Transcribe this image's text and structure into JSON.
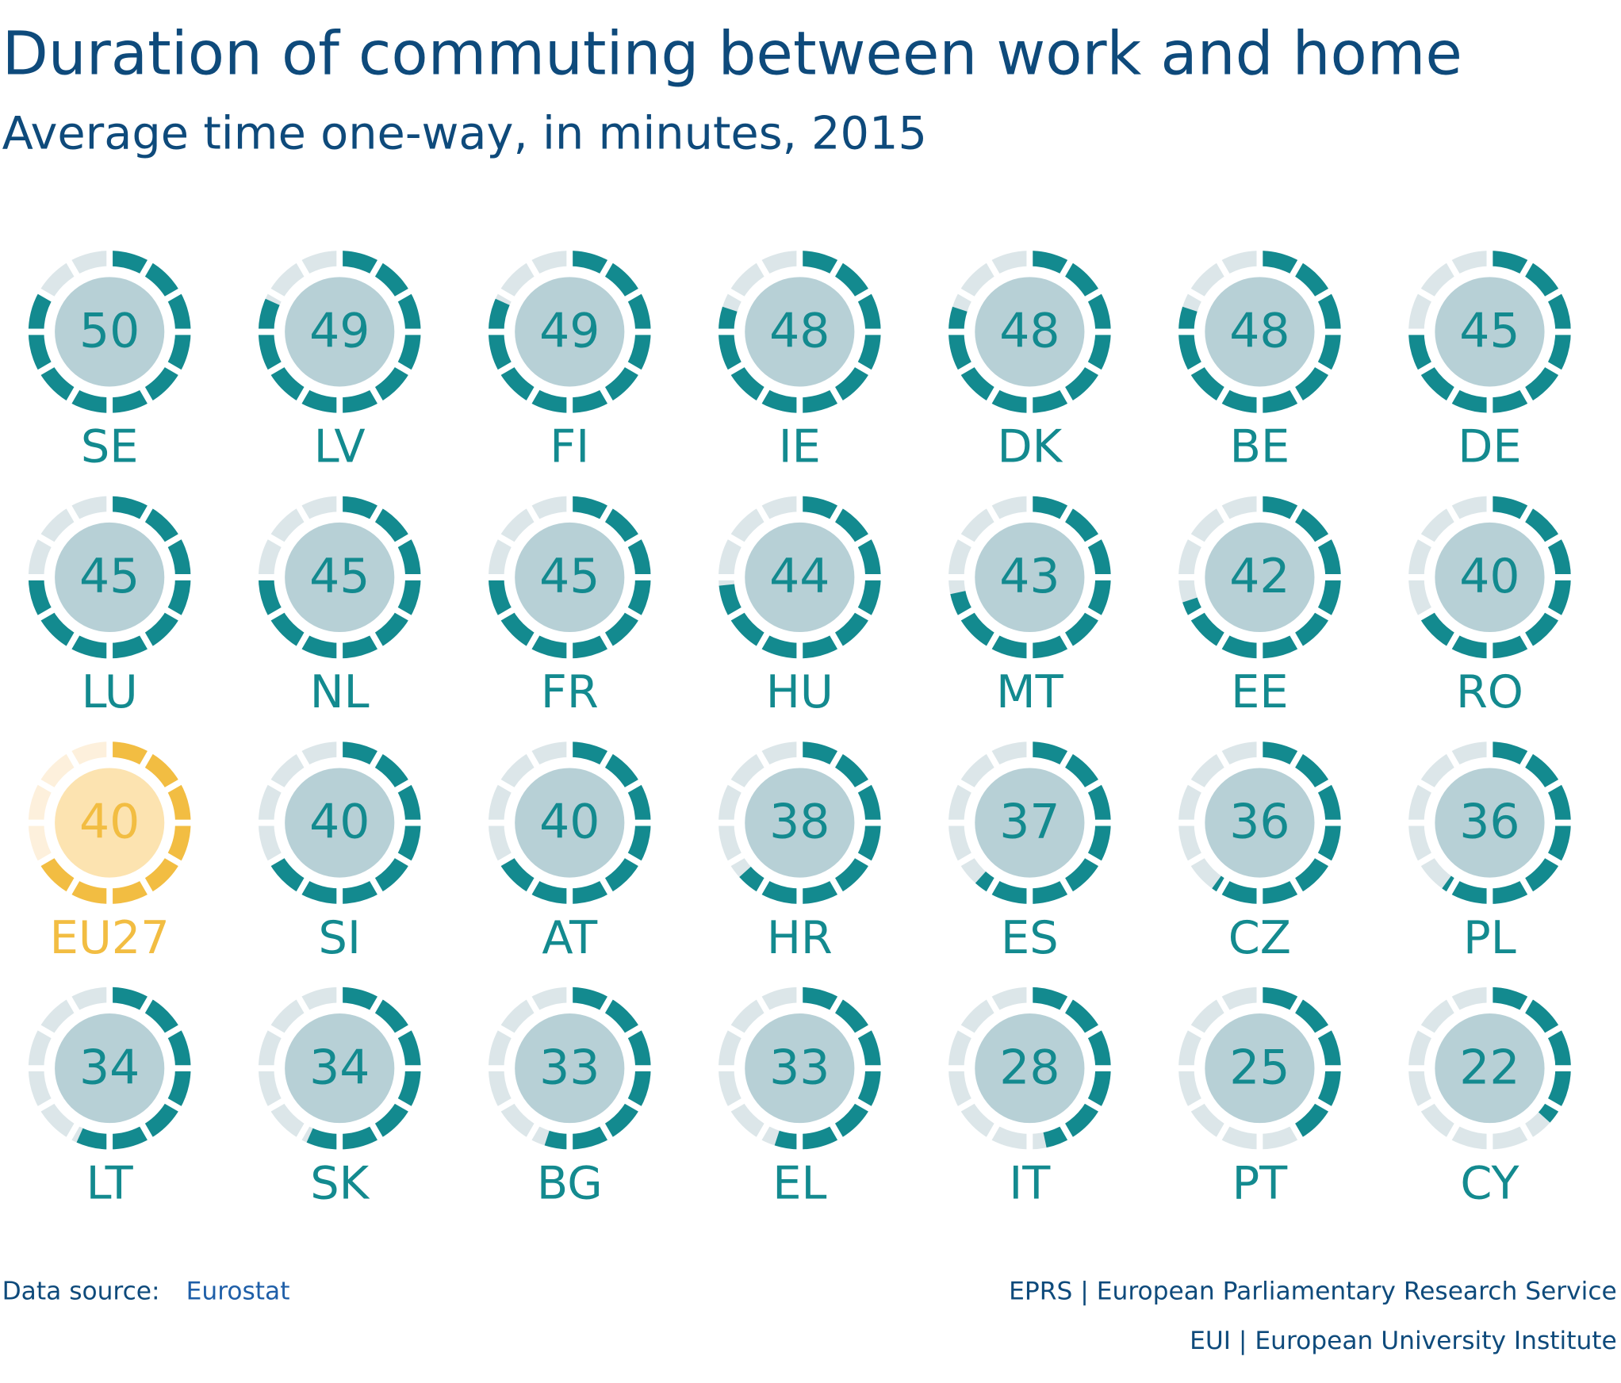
{
  "chart_data": {
    "type": "gauge",
    "title": "Duration of commuting between work and home",
    "subtitle": "Average time one-way, in minutes, 2015",
    "categories": [
      "SE",
      "LV",
      "FI",
      "IE",
      "DK",
      "BE",
      "DE",
      "LU",
      "NL",
      "FR",
      "HU",
      "MT",
      "EE",
      "RO",
      "EU27",
      "SI",
      "AT",
      "HR",
      "ES",
      "CZ",
      "PL",
      "LT",
      "SK",
      "BG",
      "EL",
      "IT",
      "PT",
      "CY"
    ],
    "values": [
      50,
      49,
      49,
      48,
      48,
      48,
      45,
      45,
      45,
      45,
      44,
      43,
      42,
      40,
      40,
      40,
      40,
      38,
      37,
      36,
      36,
      34,
      34,
      33,
      33,
      28,
      25,
      22
    ],
    "ylim": [
      0,
      60
    ],
    "yticks": [
      0,
      5,
      10,
      15,
      20,
      25,
      30,
      35,
      40,
      45,
      50,
      55
    ],
    "color": "#138a8f",
    "track_color": "#dce6e9",
    "inner_color": "#b7d0d6",
    "highlight_index": 14,
    "highlight_color": "#f2bd42",
    "highlight_track_color": "#fdf0dc",
    "highlight_inner_color": "#fce3b0",
    "source_label": "Data source:",
    "source": "Eurostat",
    "credits": [
      "EPRS | European Parliamentary Research Service",
      "EUI | European University Institute"
    ]
  }
}
